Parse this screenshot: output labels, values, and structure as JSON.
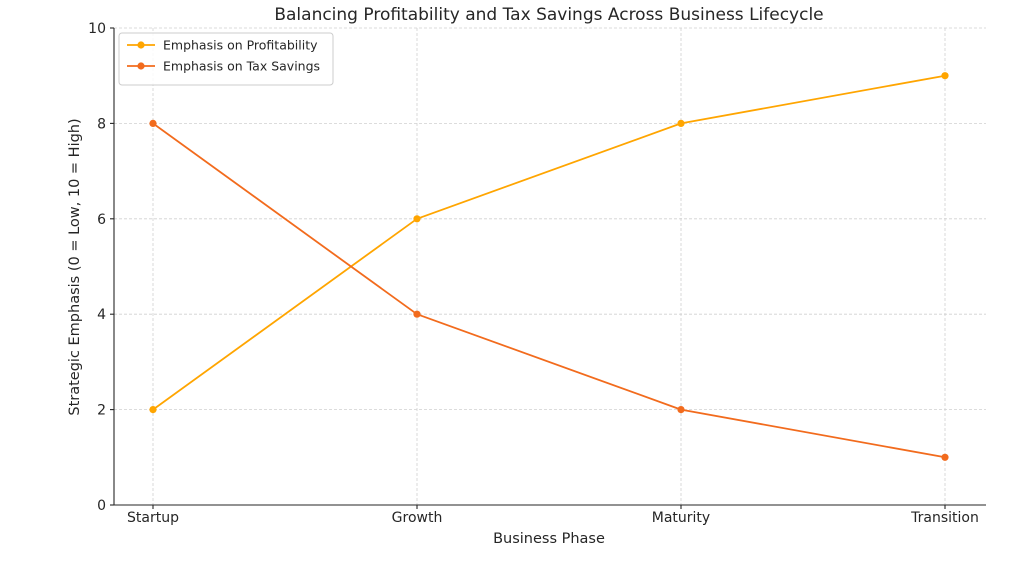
{
  "chart_data": {
    "type": "line",
    "title": "Balancing Profitability and Tax Savings Across Business Lifecycle",
    "xlabel": "Business Phase",
    "ylabel": "Strategic Emphasis (0 = Low, 10 = High)",
    "categories": [
      "Startup",
      "Growth",
      "Maturity",
      "Transition"
    ],
    "ylim": [
      0,
      10
    ],
    "yticks": [
      0,
      2,
      4,
      6,
      8,
      10
    ],
    "grid": true,
    "legend_position": "top-left",
    "series": [
      {
        "name": "Emphasis on Profitability",
        "values": [
          2,
          6,
          8,
          9
        ],
        "color": "#FFA500"
      },
      {
        "name": "Emphasis on Tax Savings",
        "values": [
          8,
          4,
          2,
          1
        ],
        "color": "#F26B1D"
      }
    ]
  }
}
